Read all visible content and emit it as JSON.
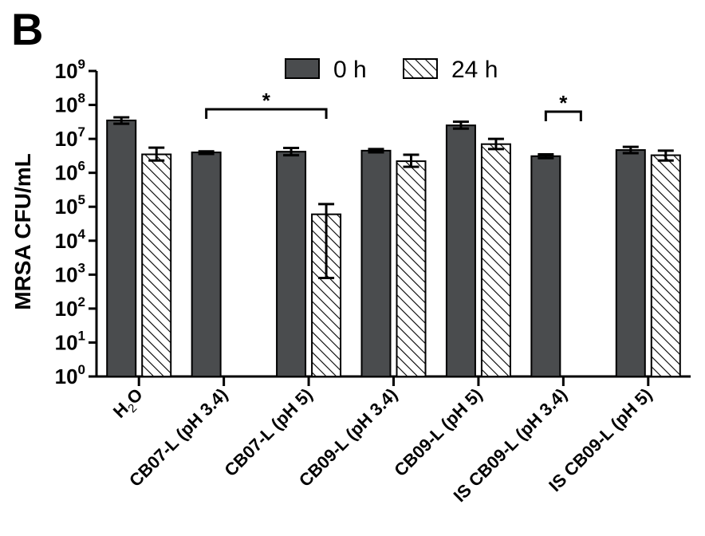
{
  "panel_label": "B",
  "colors": {
    "bar_0h": "#4a4c4e",
    "axis": "#000000"
  },
  "chart_data": {
    "type": "bar",
    "ylabel": "MRSA CFU/mL",
    "yscale": "log",
    "ylim": [
      1,
      1000000000
    ],
    "yticks": [
      {
        "base": "10",
        "exp": "0"
      },
      {
        "base": "10",
        "exp": "1"
      },
      {
        "base": "10",
        "exp": "2"
      },
      {
        "base": "10",
        "exp": "3"
      },
      {
        "base": "10",
        "exp": "4"
      },
      {
        "base": "10",
        "exp": "5"
      },
      {
        "base": "10",
        "exp": "6"
      },
      {
        "base": "10",
        "exp": "7"
      },
      {
        "base": "10",
        "exp": "8"
      },
      {
        "base": "10",
        "exp": "9"
      }
    ],
    "categories": [
      "H2O",
      "CB07-L (pH 3.4)",
      "CB07-L (pH 5)",
      "CB09-L (pH 3.4)",
      "CB09-L (pH 5)",
      "IS CB09-L (pH 3.4)",
      "IS CB09-L (pH 5)"
    ],
    "series": [
      {
        "name": "0 h",
        "fill": "solid",
        "values": [
          35000000,
          4000000,
          4200000,
          4500000,
          25000000,
          3100000,
          4700000
        ],
        "err_low": [
          28000000,
          3600000,
          3300000,
          4000000,
          20000000,
          2700000,
          3800000
        ],
        "err_high": [
          43000000,
          4300000,
          5400000,
          5000000,
          32000000,
          3500000,
          5800000
        ]
      },
      {
        "name": "24 h",
        "fill": "hatched",
        "values": [
          3500000,
          null,
          60000,
          2200000,
          7000000,
          null,
          3300000
        ],
        "err_low": [
          2300000,
          null,
          800,
          1500000,
          5000000,
          null,
          2300000
        ],
        "err_high": [
          5500000,
          null,
          120000,
          3400000,
          10000000,
          null,
          4500000
        ]
      }
    ],
    "significance": [
      {
        "label": "*",
        "category_from": 1,
        "category_to": 2
      },
      {
        "label": "*",
        "category_from": 5,
        "category_to": 5
      }
    ],
    "legend_position": "top-center",
    "grid": false
  }
}
